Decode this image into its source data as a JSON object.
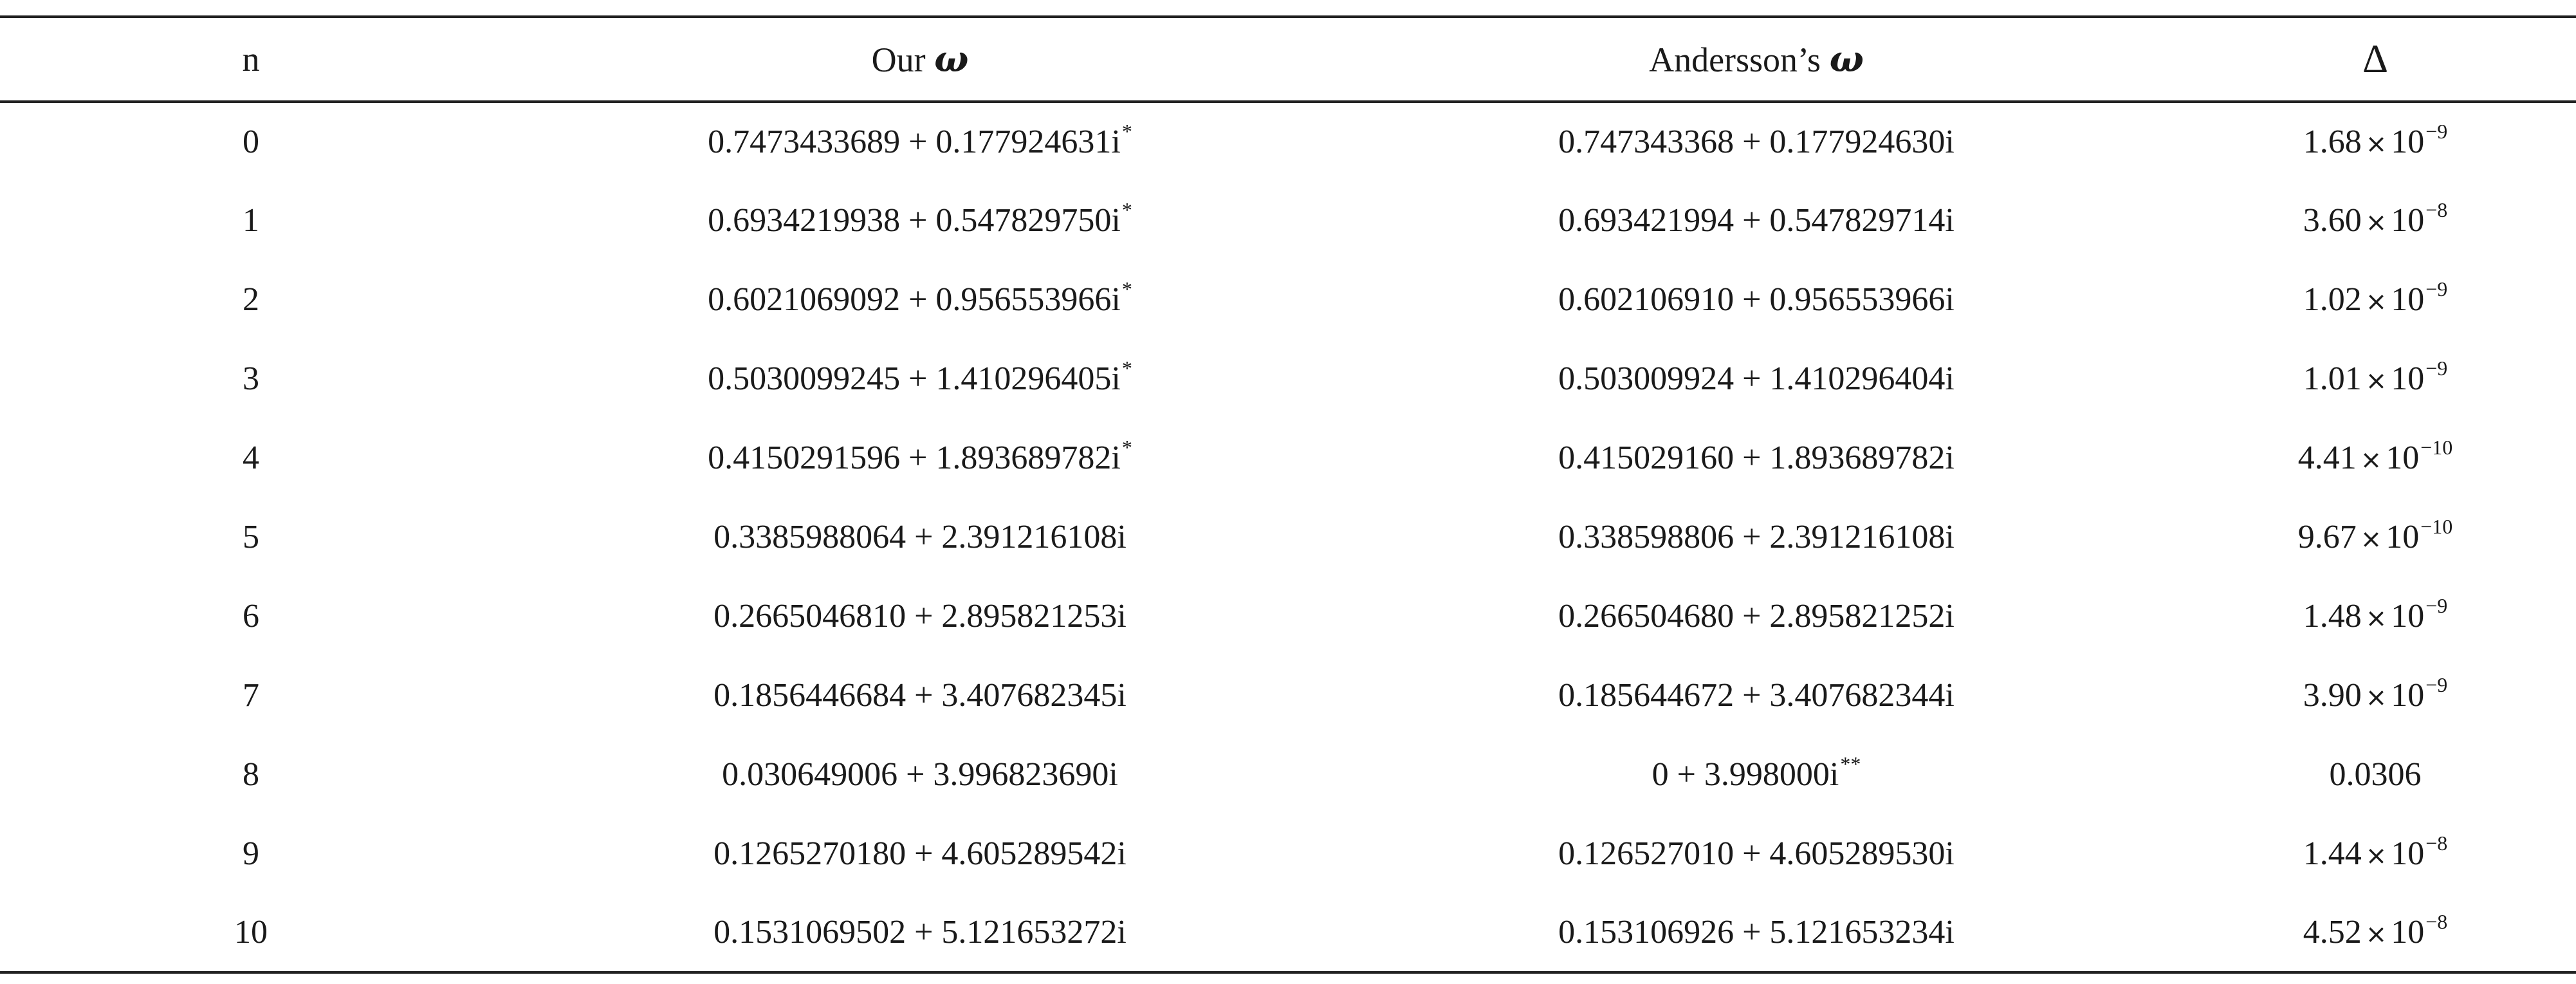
{
  "header": {
    "n": "n",
    "our_prefix": "Our",
    "andersson_prefix": "Andersson’s",
    "omega": "ω",
    "delta": "Δ"
  },
  "rows": [
    {
      "n": "0",
      "ours": "0.7473433689 + 0.177924631i",
      "ours_mark": "*",
      "andersson": "0.747343368 + 0.177924630i",
      "andersson_mark": "",
      "delta_mant": "1.68",
      "delta_exp": "−9",
      "delta_plain": ""
    },
    {
      "n": "1",
      "ours": "0.6934219938 + 0.547829750i",
      "ours_mark": "*",
      "andersson": "0.693421994 + 0.547829714i",
      "andersson_mark": "",
      "delta_mant": "3.60",
      "delta_exp": "−8",
      "delta_plain": ""
    },
    {
      "n": "2",
      "ours": "0.6021069092 + 0.956553966i",
      "ours_mark": "*",
      "andersson": "0.602106910 + 0.956553966i",
      "andersson_mark": "",
      "delta_mant": "1.02",
      "delta_exp": "−9",
      "delta_plain": ""
    },
    {
      "n": "3",
      "ours": "0.5030099245 + 1.410296405i",
      "ours_mark": "*",
      "andersson": "0.503009924 + 1.410296404i",
      "andersson_mark": "",
      "delta_mant": "1.01",
      "delta_exp": "−9",
      "delta_plain": ""
    },
    {
      "n": "4",
      "ours": "0.4150291596 + 1.893689782i",
      "ours_mark": "*",
      "andersson": "0.415029160 + 1.893689782i",
      "andersson_mark": "",
      "delta_mant": "4.41",
      "delta_exp": "−10",
      "delta_plain": ""
    },
    {
      "n": "5",
      "ours": "0.3385988064 + 2.391216108i",
      "ours_mark": "",
      "andersson": "0.338598806 + 2.391216108i",
      "andersson_mark": "",
      "delta_mant": "9.67",
      "delta_exp": "−10",
      "delta_plain": ""
    },
    {
      "n": "6",
      "ours": "0.2665046810 + 2.895821253i",
      "ours_mark": "",
      "andersson": "0.266504680 + 2.895821252i",
      "andersson_mark": "",
      "delta_mant": "1.48",
      "delta_exp": "−9",
      "delta_plain": ""
    },
    {
      "n": "7",
      "ours": "0.1856446684 + 3.407682345i",
      "ours_mark": "",
      "andersson": "0.185644672 + 3.407682344i",
      "andersson_mark": "",
      "delta_mant": "3.90",
      "delta_exp": "−9",
      "delta_plain": ""
    },
    {
      "n": "8",
      "ours": "0.030649006 + 3.996823690i",
      "ours_mark": "",
      "andersson": "0 + 3.998000i",
      "andersson_mark": "**",
      "delta_mant": "",
      "delta_exp": "",
      "delta_plain": "0.0306"
    },
    {
      "n": "9",
      "ours": "0.1265270180 + 4.605289542i",
      "ours_mark": "",
      "andersson": "0.126527010 + 4.605289530i",
      "andersson_mark": "",
      "delta_mant": "1.44",
      "delta_exp": "−8",
      "delta_plain": ""
    },
    {
      "n": "10",
      "ours": "0.1531069502 + 5.121653272i",
      "ours_mark": "",
      "andersson": "0.153106926 + 5.121653234i",
      "andersson_mark": "",
      "delta_mant": "4.52",
      "delta_exp": "−8",
      "delta_plain": ""
    }
  ]
}
